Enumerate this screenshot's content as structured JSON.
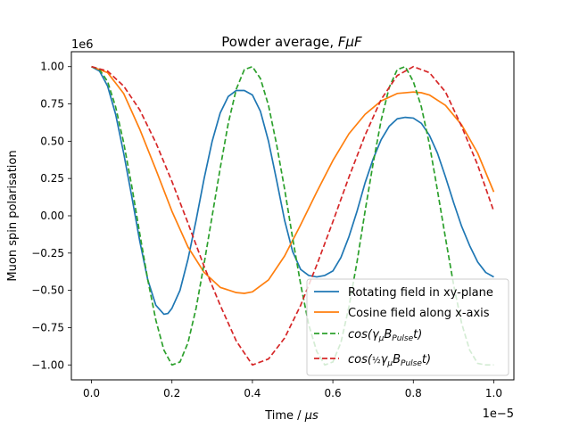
{
  "chart_data": {
    "type": "line",
    "title_prefix": "Powder average, ",
    "title_math": "FμF",
    "xlabel_prefix": "Time / ",
    "xlabel_math": "μs",
    "ylabel": "Muon spin polarisation",
    "y_offset_text": "1e6",
    "x_offset_text": "1e−5",
    "xlim": [
      -0.05,
      1.05
    ],
    "ylim": [
      -1.1,
      1.1
    ],
    "x_scale_note": "x in units of 1e-5, y in units of 1e6",
    "x_ticks": [
      {
        "value": 0.0,
        "label": "0.0"
      },
      {
        "value": 0.2,
        "label": "0.2"
      },
      {
        "value": 0.4,
        "label": "0.4"
      },
      {
        "value": 0.6,
        "label": "0.6"
      },
      {
        "value": 0.8,
        "label": "0.8"
      },
      {
        "value": 1.0,
        "label": "1.0"
      }
    ],
    "y_ticks": [
      {
        "value": 1.0,
        "label": "1.00"
      },
      {
        "value": 0.75,
        "label": "0.75"
      },
      {
        "value": 0.5,
        "label": "0.50"
      },
      {
        "value": 0.25,
        "label": "0.25"
      },
      {
        "value": 0.0,
        "label": "0.00"
      },
      {
        "value": -0.25,
        "label": "−0.25"
      },
      {
        "value": -0.5,
        "label": "−0.50"
      },
      {
        "value": -0.75,
        "label": "−0.75"
      },
      {
        "value": -1.0,
        "label": "−1.00"
      }
    ],
    "grid": false,
    "legend_position": "lower-right",
    "series": [
      {
        "name": "Rotating field in xy-plane",
        "color": "#1f77b4",
        "dashed": false,
        "x": [
          0.0,
          0.02,
          0.04,
          0.06,
          0.08,
          0.1,
          0.12,
          0.14,
          0.16,
          0.18,
          0.19,
          0.2,
          0.22,
          0.24,
          0.26,
          0.28,
          0.3,
          0.32,
          0.34,
          0.36,
          0.38,
          0.4,
          0.42,
          0.44,
          0.46,
          0.48,
          0.5,
          0.52,
          0.54,
          0.56,
          0.58,
          0.6,
          0.62,
          0.64,
          0.66,
          0.68,
          0.7,
          0.72,
          0.74,
          0.76,
          0.78,
          0.8,
          0.82,
          0.84,
          0.86,
          0.88,
          0.9,
          0.92,
          0.94,
          0.96,
          0.98,
          1.0
        ],
        "y": [
          1.0,
          0.97,
          0.87,
          0.68,
          0.42,
          0.13,
          -0.17,
          -0.43,
          -0.6,
          -0.66,
          -0.655,
          -0.62,
          -0.5,
          -0.29,
          -0.03,
          0.25,
          0.5,
          0.69,
          0.8,
          0.84,
          0.84,
          0.81,
          0.7,
          0.5,
          0.24,
          -0.03,
          -0.24,
          -0.36,
          -0.4,
          -0.41,
          -0.4,
          -0.37,
          -0.28,
          -0.14,
          0.03,
          0.22,
          0.38,
          0.51,
          0.6,
          0.65,
          0.66,
          0.655,
          0.62,
          0.54,
          0.42,
          0.26,
          0.09,
          -0.07,
          -0.2,
          -0.31,
          -0.38,
          -0.41
        ]
      },
      {
        "name": "Cosine field along x-axis",
        "color": "#ff7f0e",
        "dashed": false,
        "x": [
          0.0,
          0.04,
          0.08,
          0.12,
          0.16,
          0.2,
          0.24,
          0.28,
          0.32,
          0.36,
          0.38,
          0.4,
          0.44,
          0.48,
          0.52,
          0.56,
          0.6,
          0.64,
          0.68,
          0.72,
          0.76,
          0.8,
          0.82,
          0.84,
          0.88,
          0.92,
          0.96,
          1.0
        ],
        "y": [
          1.0,
          0.96,
          0.82,
          0.58,
          0.31,
          0.03,
          -0.21,
          -0.38,
          -0.48,
          -0.515,
          -0.52,
          -0.51,
          -0.43,
          -0.27,
          -0.06,
          0.16,
          0.37,
          0.55,
          0.68,
          0.77,
          0.82,
          0.83,
          0.825,
          0.81,
          0.74,
          0.61,
          0.42,
          0.16
        ]
      },
      {
        "name_math": "cos(γ",
        "name": "cos(γμBPulset)",
        "color": "#2ca02c",
        "dashed": true,
        "x": [
          0.0,
          0.02,
          0.04,
          0.06,
          0.08,
          0.1,
          0.12,
          0.14,
          0.16,
          0.18,
          0.2,
          0.22,
          0.24,
          0.26,
          0.28,
          0.3,
          0.32,
          0.34,
          0.36,
          0.38,
          0.4,
          0.42,
          0.44,
          0.46,
          0.48,
          0.5,
          0.52,
          0.54,
          0.56,
          0.58,
          0.6,
          0.62,
          0.64,
          0.66,
          0.68,
          0.7,
          0.72,
          0.74,
          0.76,
          0.78,
          0.8,
          0.82,
          0.84,
          0.86,
          0.88,
          0.9,
          0.92,
          0.94,
          0.96,
          0.98,
          1.0
        ],
        "y": [
          1.0,
          0.98,
          0.9,
          0.73,
          0.49,
          0.2,
          -0.12,
          -0.43,
          -0.7,
          -0.9,
          -1.0,
          -0.98,
          -0.85,
          -0.62,
          -0.32,
          0.0,
          0.32,
          0.62,
          0.85,
          0.98,
          1.0,
          0.92,
          0.74,
          0.48,
          0.18,
          -0.15,
          -0.46,
          -0.73,
          -0.91,
          -1.0,
          -0.98,
          -0.85,
          -0.61,
          -0.31,
          0.03,
          0.35,
          0.64,
          0.86,
          0.98,
          1.0,
          0.9,
          0.73,
          0.48,
          0.17,
          -0.15,
          -0.46,
          -0.72,
          -0.9,
          -0.99,
          -1.0,
          -1.0
        ]
      },
      {
        "name": "cos(½γμBPulset)",
        "color": "#d62728",
        "dashed": true,
        "x": [
          0.0,
          0.04,
          0.08,
          0.12,
          0.16,
          0.2,
          0.24,
          0.28,
          0.32,
          0.36,
          0.4,
          0.44,
          0.48,
          0.52,
          0.56,
          0.6,
          0.64,
          0.68,
          0.72,
          0.76,
          0.8,
          0.84,
          0.88,
          0.92,
          0.96,
          1.0
        ],
        "y": [
          1.0,
          0.97,
          0.87,
          0.71,
          0.49,
          0.23,
          -0.05,
          -0.34,
          -0.6,
          -0.84,
          -1.0,
          -0.96,
          -0.82,
          -0.6,
          -0.33,
          -0.04,
          0.26,
          0.54,
          0.78,
          0.94,
          1.0,
          0.96,
          0.83,
          0.6,
          0.34,
          0.03
        ]
      }
    ]
  }
}
